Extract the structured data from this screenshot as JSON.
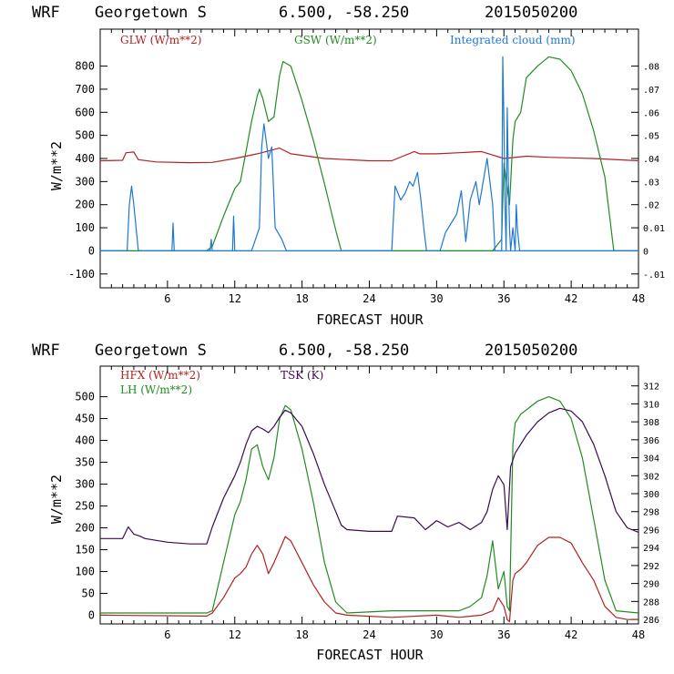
{
  "chart_data": [
    {
      "type": "line",
      "header": {
        "model": "WRF",
        "location": "Georgetown S",
        "coords": "6.500, -58.250",
        "run": "2015050200"
      },
      "xlabel": "FORECAST HOUR",
      "ylabel": "W/m**2",
      "xlim": [
        0,
        48
      ],
      "ylim": [
        -160,
        960
      ],
      "y2lim": [
        -0.016,
        0.096
      ],
      "xticks": [
        "6",
        "12",
        "18",
        "24",
        "30",
        "36",
        "42",
        "48"
      ],
      "yticks": [
        "-100",
        "0",
        "100",
        "200",
        "300",
        "400",
        "500",
        "600",
        "700",
        "800"
      ],
      "y2ticks": [
        "-.01",
        "0",
        "0.01",
        ".02",
        ".03",
        ".04",
        ".05",
        ".06",
        ".07",
        ".08"
      ],
      "legend": [
        {
          "label": "GLW (W/m**2)",
          "color": "#b22222"
        },
        {
          "label": "GSW (W/m**2)",
          "color": "#228b22"
        },
        {
          "label": "Integrated cloud (mm)",
          "color": "#1e78d2"
        }
      ],
      "zero_line_color": "#1e78d2",
      "series": [
        {
          "name": "GLW",
          "color": "#b22222",
          "axis": "left",
          "x": [
            0,
            2,
            2.3,
            3,
            3.4,
            5,
            8,
            10,
            12,
            14,
            16,
            17,
            20,
            24,
            26,
            28,
            28.5,
            30,
            32,
            34,
            36,
            38,
            40,
            44,
            48
          ],
          "y": [
            390,
            392,
            425,
            428,
            395,
            385,
            382,
            383,
            400,
            420,
            445,
            420,
            400,
            390,
            390,
            430,
            420,
            420,
            425,
            430,
            400,
            410,
            405,
            400,
            390
          ]
        },
        {
          "name": "GSW",
          "color": "#228b22",
          "axis": "left",
          "x": [
            0,
            9.5,
            10,
            11,
            12,
            12.5,
            13,
            13.5,
            14,
            14.2,
            14.5,
            15,
            15.5,
            16,
            16.3,
            17,
            18,
            19,
            20,
            21,
            21.5,
            35,
            35.8,
            36,
            36.5,
            36.8,
            37,
            37.5,
            38,
            39,
            40,
            41,
            42,
            43,
            44,
            45,
            45.8,
            48
          ],
          "y": [
            0,
            0,
            20,
            150,
            270,
            300,
            430,
            560,
            670,
            700,
            660,
            560,
            580,
            760,
            820,
            800,
            650,
            480,
            290,
            90,
            0,
            0,
            50,
            380,
            200,
            480,
            560,
            600,
            750,
            800,
            840,
            830,
            780,
            680,
            520,
            320,
            0,
            0
          ]
        },
        {
          "name": "Integrated cloud",
          "color": "#1e78d2",
          "axis": "right",
          "x": [
            0,
            2.4,
            2.6,
            2.8,
            3.0,
            3.2,
            3.4,
            6.4,
            6.5,
            6.6,
            9.8,
            9.9,
            10.0,
            11.8,
            11.9,
            12.0,
            13.5,
            14.2,
            14.4,
            14.6,
            15.0,
            15.3,
            15.6,
            16.2,
            16.6,
            26,
            26.3,
            26.8,
            27.2,
            27.6,
            27.9,
            28.3,
            28.6,
            28.9,
            29.1,
            30.3,
            30.8,
            31.3,
            31.8,
            32.2,
            32.6,
            33.0,
            33.5,
            33.8,
            34.5,
            35.0,
            35.2,
            35.8,
            35.9,
            36.0,
            36.1,
            36.2,
            36.3,
            36.4,
            36.5,
            36.6,
            36.8,
            37.0,
            37.1,
            37.2,
            37.4,
            48
          ],
          "y": [
            0,
            0,
            0.02,
            0.028,
            0.02,
            0.01,
            0,
            0,
            0.012,
            0,
            0,
            0.005,
            0,
            0,
            0.015,
            0,
            0,
            0.01,
            0.045,
            0.055,
            0.04,
            0.045,
            0.01,
            0.005,
            0,
            0,
            0.028,
            0.022,
            0.025,
            0.03,
            0.028,
            0.034,
            0.022,
            0.008,
            0,
            0,
            0.008,
            0.012,
            0.016,
            0.026,
            0.004,
            0.022,
            0.03,
            0.02,
            0.04,
            0.02,
            0,
            0,
            0.084,
            0.055,
            0.02,
            0,
            0.062,
            0.03,
            0.01,
            0,
            0.01,
            0,
            0.02,
            0.01,
            0,
            0
          ]
        }
      ]
    },
    {
      "type": "line",
      "header": {
        "model": "WRF",
        "location": "Georgetown S",
        "coords": "6.500, -58.250",
        "run": "2015050200"
      },
      "xlabel": "FORECAST HOUR",
      "ylabel": "W/m**2",
      "xlim": [
        0,
        48
      ],
      "ylim": [
        -20,
        570
      ],
      "y2lim": [
        285.5,
        314.2
      ],
      "xticks": [
        "6",
        "12",
        "18",
        "24",
        "30",
        "36",
        "42",
        "48"
      ],
      "yticks": [
        "0",
        "50",
        "100",
        "150",
        "200",
        "250",
        "300",
        "350",
        "400",
        "450",
        "500"
      ],
      "y2ticks": [
        "286",
        "288",
        "290",
        "292",
        "294",
        "296",
        "298",
        "300",
        "302",
        "304",
        "306",
        "308",
        "310",
        "312"
      ],
      "legend": [
        {
          "label": "HFX (W/m**2)",
          "color": "#b22222"
        },
        {
          "label": "LH (W/m**2)",
          "color": "#228b22"
        },
        {
          "label": "TSK (K)",
          "color": "#3c0a50"
        }
      ],
      "series": [
        {
          "name": "HFX",
          "color": "#b22222",
          "axis": "left",
          "x": [
            0,
            9.5,
            10,
            11,
            12,
            12.5,
            13,
            13.5,
            14,
            14.5,
            15,
            15.5,
            16,
            16.5,
            17,
            18,
            19,
            20,
            21,
            22,
            26,
            30,
            32,
            34,
            35,
            35.5,
            36,
            36.3,
            36.5,
            36.8,
            37,
            37.5,
            38,
            39,
            40,
            41,
            42,
            43,
            44,
            45,
            46,
            47,
            48
          ],
          "y": [
            0,
            -2,
            5,
            40,
            85,
            95,
            110,
            140,
            160,
            140,
            95,
            120,
            150,
            180,
            170,
            120,
            70,
            30,
            5,
            0,
            -5,
            0,
            -5,
            0,
            10,
            40,
            20,
            -10,
            -15,
            80,
            95,
            105,
            120,
            160,
            178,
            178,
            165,
            120,
            80,
            20,
            -5,
            -10,
            -10
          ]
        },
        {
          "name": "LH",
          "color": "#228b22",
          "axis": "left",
          "x": [
            0,
            9.5,
            10,
            11,
            12,
            12.5,
            13,
            13.5,
            14,
            14.5,
            15,
            15.5,
            16,
            16.5,
            17,
            18,
            19,
            20,
            21,
            22,
            26,
            30,
            32,
            33,
            34,
            34.5,
            35,
            35.5,
            36,
            36.3,
            36.5,
            36.8,
            37,
            37.5,
            38,
            39,
            40,
            41,
            42,
            43,
            44,
            45,
            46,
            48
          ],
          "y": [
            5,
            5,
            10,
            120,
            230,
            260,
            310,
            380,
            390,
            340,
            310,
            360,
            450,
            480,
            470,
            380,
            260,
            120,
            30,
            5,
            10,
            10,
            10,
            20,
            40,
            90,
            170,
            60,
            100,
            20,
            10,
            390,
            440,
            460,
            470,
            490,
            500,
            490,
            450,
            360,
            220,
            80,
            10,
            5
          ]
        },
        {
          "name": "TSK",
          "color": "#3c0a50",
          "axis": "right",
          "x": [
            0,
            2,
            2.5,
            3,
            3.5,
            4,
            6,
            8,
            9.5,
            10,
            11,
            12,
            12.5,
            13,
            13.5,
            14,
            14.5,
            15,
            15.5,
            16,
            16.5,
            17,
            18,
            19,
            20,
            21,
            21.5,
            22,
            24,
            26,
            26.5,
            28,
            29,
            30,
            31,
            32,
            33,
            34,
            34.5,
            35,
            35.5,
            36,
            36.3,
            36.6,
            37,
            37.5,
            38,
            39,
            40,
            41,
            42,
            43,
            44,
            45,
            46,
            47,
            48
          ],
          "y": [
            295.0,
            295.0,
            296.3,
            295.5,
            295.3,
            295.0,
            294.6,
            294.4,
            294.4,
            296.3,
            299.5,
            302.0,
            303.5,
            305.5,
            307.0,
            307.5,
            307.2,
            306.8,
            307.5,
            308.5,
            309.3,
            309.0,
            307.5,
            304.5,
            301.0,
            298.0,
            296.5,
            296.0,
            295.8,
            295.8,
            297.5,
            297.3,
            296.0,
            297.0,
            296.3,
            296.8,
            296.0,
            296.8,
            298.0,
            300.5,
            302.0,
            301.0,
            296.0,
            303.0,
            304.5,
            305.5,
            306.5,
            308.0,
            309.0,
            309.5,
            309.2,
            308.0,
            305.5,
            302.0,
            298.0,
            296.2,
            295.7
          ]
        }
      ]
    }
  ]
}
